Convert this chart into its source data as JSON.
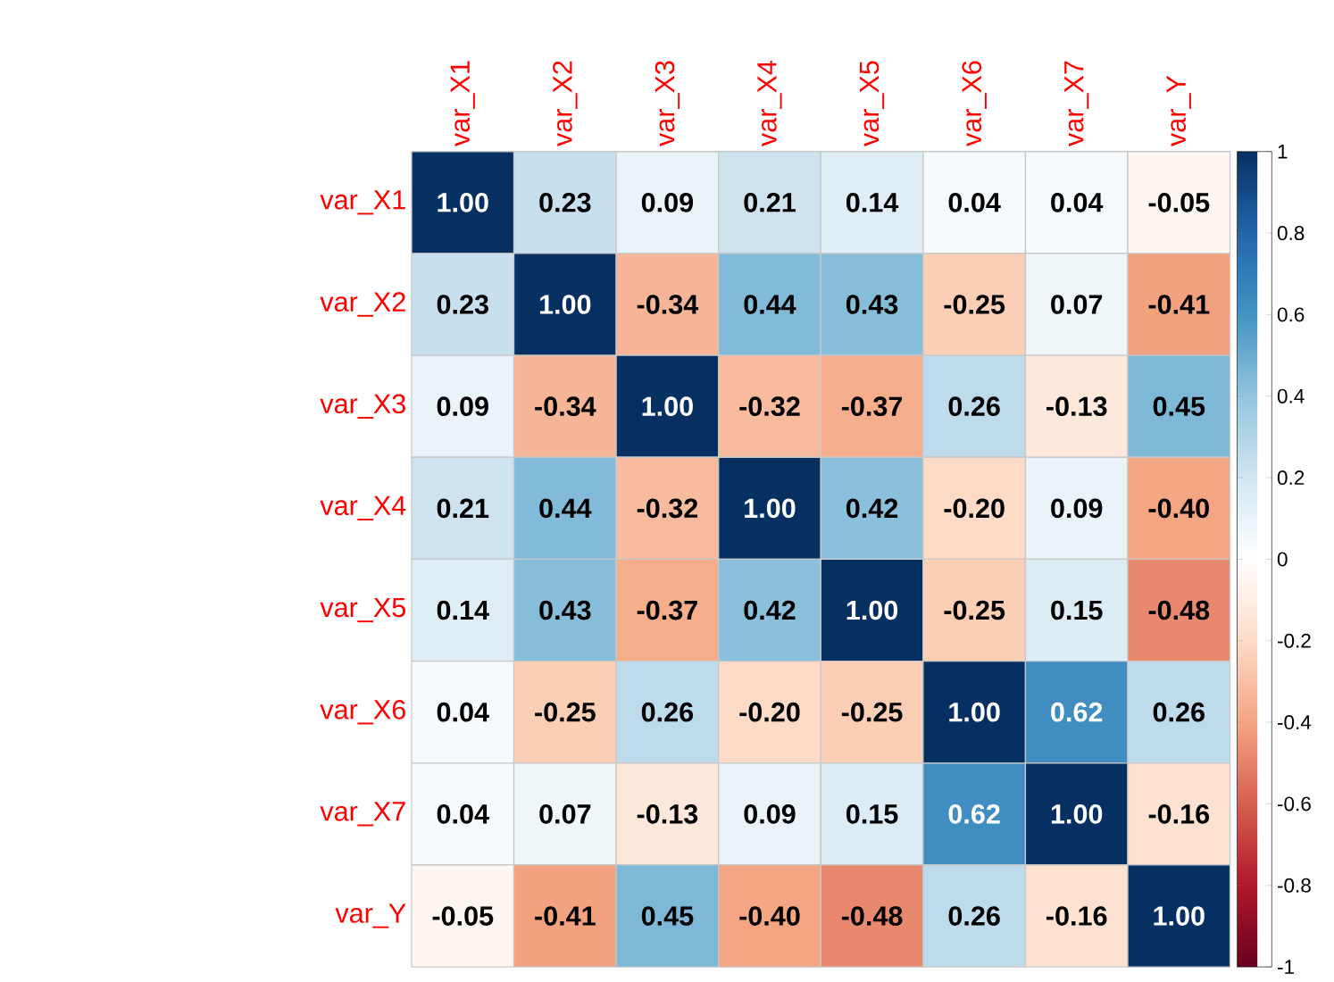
{
  "chart_data": {
    "type": "heatmap",
    "categories": [
      "var_X1",
      "var_X2",
      "var_X3",
      "var_X4",
      "var_X5",
      "var_X6",
      "var_X7",
      "var_Y"
    ],
    "y_categories": [
      "var_X1",
      "var_X2",
      "var_X3",
      "var_X4",
      "var_X5",
      "var_X6",
      "var_X7",
      "var_Y"
    ],
    "cells": [
      [
        1,
        0.23,
        0.09,
        0.21,
        0.14,
        0.04,
        0.04,
        -0.05
      ],
      [
        0.23,
        1,
        -0.34,
        0.44,
        0.43,
        -0.25,
        0.07,
        -0.41
      ],
      [
        0.09,
        -0.34,
        1,
        -0.32,
        -0.37,
        0.26,
        -0.13,
        0.45
      ],
      [
        0.21,
        0.44,
        -0.32,
        1,
        0.42,
        -0.2,
        0.09,
        -0.4
      ],
      [
        0.14,
        0.43,
        -0.37,
        0.42,
        1,
        -0.25,
        0.15,
        -0.48
      ],
      [
        0.04,
        -0.25,
        0.26,
        -0.2,
        -0.25,
        1,
        0.62,
        0.26
      ],
      [
        0.04,
        0.07,
        -0.13,
        0.09,
        0.15,
        0.62,
        1,
        -0.16
      ],
      [
        -0.05,
        -0.41,
        0.45,
        -0.4,
        -0.48,
        0.26,
        -0.16,
        1
      ]
    ],
    "cell_labels": [
      [
        "1.00",
        "0.23",
        "0.09",
        "0.21",
        "0.14",
        "0.04",
        "0.04",
        "-0.05"
      ],
      [
        "0.23",
        "1.00",
        "-0.34",
        "0.44",
        "0.43",
        "-0.25",
        "0.07",
        "-0.41"
      ],
      [
        "0.09",
        "-0.34",
        "1.00",
        "-0.32",
        "-0.37",
        "0.26",
        "-0.13",
        "0.45"
      ],
      [
        "0.21",
        "0.44",
        "-0.32",
        "1.00",
        "0.42",
        "-0.20",
        "0.09",
        "-0.40"
      ],
      [
        "0.14",
        "0.43",
        "-0.37",
        "0.42",
        "1.00",
        "-0.25",
        "0.15",
        "-0.48"
      ],
      [
        "0.04",
        "-0.25",
        "0.26",
        "-0.20",
        "-0.25",
        "1.00",
        "0.62",
        "0.26"
      ],
      [
        "0.04",
        "0.07",
        "-0.13",
        "0.09",
        "0.15",
        "0.62",
        "1.00",
        "-0.16"
      ],
      [
        "-0.05",
        "-0.41",
        "0.45",
        "-0.40",
        "-0.48",
        "0.26",
        "-0.16",
        "1.00"
      ]
    ],
    "clim": [
      -1,
      1
    ],
    "cticks": [
      -1,
      -0.8,
      -0.6,
      -0.4,
      -0.2,
      0,
      0.2,
      0.4,
      0.6,
      0.8,
      1
    ]
  }
}
